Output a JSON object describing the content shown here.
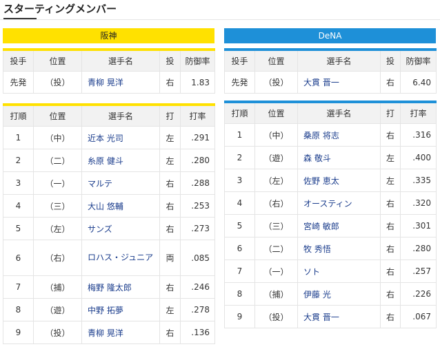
{
  "page": {
    "title": "スターティングメンバー"
  },
  "tigers": {
    "team_name": "阪神",
    "pitcher_table": {
      "headers": [
        "投手",
        "位置",
        "選手名",
        "投",
        "防御率"
      ],
      "rows": [
        {
          "role": "先発",
          "pos": "（投）",
          "name": "青柳 晃洋",
          "hand": "右",
          "era": "1.83"
        }
      ]
    },
    "lineup_table": {
      "headers": [
        "打順",
        "位置",
        "選手名",
        "打",
        "打率"
      ],
      "rows": [
        {
          "order": "1",
          "pos": "（中）",
          "name": "近本 光司",
          "hand": "左",
          "avg": ".291"
        },
        {
          "order": "2",
          "pos": "（二）",
          "name": "糸原 健斗",
          "hand": "左",
          "avg": ".280"
        },
        {
          "order": "3",
          "pos": "（一）",
          "name": "マルテ",
          "hand": "右",
          "avg": ".288"
        },
        {
          "order": "4",
          "pos": "（三）",
          "name": "大山 悠輔",
          "hand": "右",
          "avg": ".253"
        },
        {
          "order": "5",
          "pos": "（左）",
          "name": "サンズ",
          "hand": "右",
          "avg": ".273"
        },
        {
          "order": "6",
          "pos": "（右）",
          "name": "ロハス・ジュニア",
          "hand": "両",
          "avg": ".085"
        },
        {
          "order": "7",
          "pos": "（捕）",
          "name": "梅野 隆太郎",
          "hand": "右",
          "avg": ".246"
        },
        {
          "order": "8",
          "pos": "（遊）",
          "name": "中野 拓夢",
          "hand": "左",
          "avg": ".278"
        },
        {
          "order": "9",
          "pos": "（投）",
          "name": "青柳 晃洋",
          "hand": "右",
          "avg": ".136"
        }
      ]
    }
  },
  "dena": {
    "team_name": "DeNA",
    "pitcher_table": {
      "headers": [
        "投手",
        "位置",
        "選手名",
        "投",
        "防御率"
      ],
      "rows": [
        {
          "role": "先発",
          "pos": "（投）",
          "name": "大貫 晋一",
          "hand": "右",
          "era": "6.40"
        }
      ]
    },
    "lineup_table": {
      "headers": [
        "打順",
        "位置",
        "選手名",
        "打",
        "打率"
      ],
      "rows": [
        {
          "order": "1",
          "pos": "（中）",
          "name": "桑原 将志",
          "hand": "右",
          "avg": ".316"
        },
        {
          "order": "2",
          "pos": "（遊）",
          "name": "森 敬斗",
          "hand": "左",
          "avg": ".400"
        },
        {
          "order": "3",
          "pos": "（左）",
          "name": "佐野 恵太",
          "hand": "左",
          "avg": ".335"
        },
        {
          "order": "4",
          "pos": "（右）",
          "name": "オースティン",
          "hand": "右",
          "avg": ".320"
        },
        {
          "order": "5",
          "pos": "（三）",
          "name": "宮崎 敏郎",
          "hand": "右",
          "avg": ".301"
        },
        {
          "order": "6",
          "pos": "（二）",
          "name": "牧 秀悟",
          "hand": "右",
          "avg": ".280"
        },
        {
          "order": "7",
          "pos": "（一）",
          "name": "ソト",
          "hand": "右",
          "avg": ".257"
        },
        {
          "order": "8",
          "pos": "（捕）",
          "name": "伊藤 光",
          "hand": "右",
          "avg": ".226"
        },
        {
          "order": "9",
          "pos": "（投）",
          "name": "大貫 晋一",
          "hand": "右",
          "avg": ".067"
        }
      ]
    }
  },
  "colors": {
    "tigers_accent": "#ffe100",
    "dena_accent": "#1e90d8",
    "link_text": "#1a3c8c"
  }
}
